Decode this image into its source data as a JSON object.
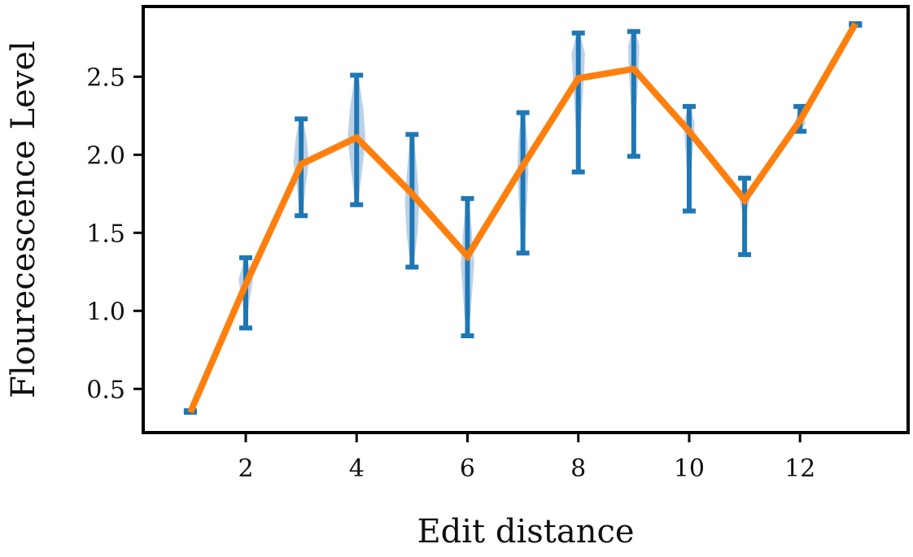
{
  "chart_data": {
    "type": "line",
    "xlabel": "Edit distance",
    "ylabel": "Flourecescence Level",
    "xlim": [
      0.15,
      13.95
    ],
    "ylim": [
      0.22,
      2.95
    ],
    "xticks": [
      2,
      4,
      6,
      8,
      10,
      12
    ],
    "yticks": [
      0.5,
      1.0,
      1.5,
      2.0,
      2.5
    ],
    "ytick_labels": [
      "0.5",
      "1.0",
      "1.5",
      "2.0",
      "2.5"
    ],
    "grid": false,
    "colors": {
      "mean_line": "#ff7f0e",
      "error_bar": "#1f77b4",
      "violin": "#b7cfe5"
    },
    "series": [
      {
        "x": [
          1,
          2,
          3,
          4,
          5,
          6,
          7,
          8,
          9,
          10,
          11,
          12,
          13
        ],
        "y": [
          0.35,
          1.17,
          1.94,
          2.11,
          1.75,
          1.35,
          1.93,
          2.49,
          2.55,
          2.15,
          1.71,
          2.22,
          2.84
        ]
      }
    ],
    "ranges": [
      {
        "x": 1,
        "min": 0.35,
        "max": 0.36
      },
      {
        "x": 2,
        "min": 0.89,
        "max": 1.34
      },
      {
        "x": 3,
        "min": 1.61,
        "max": 2.23
      },
      {
        "x": 4,
        "min": 1.68,
        "max": 2.51
      },
      {
        "x": 5,
        "min": 1.28,
        "max": 2.13
      },
      {
        "x": 6,
        "min": 0.84,
        "max": 1.72
      },
      {
        "x": 7,
        "min": 1.37,
        "max": 2.27
      },
      {
        "x": 8,
        "min": 1.89,
        "max": 2.78
      },
      {
        "x": 9,
        "min": 1.99,
        "max": 2.79
      },
      {
        "x": 10,
        "min": 1.64,
        "max": 2.31
      },
      {
        "x": 11,
        "min": 1.36,
        "max": 1.85
      },
      {
        "x": 12,
        "min": 2.15,
        "max": 2.31
      },
      {
        "x": 13,
        "min": 2.83,
        "max": 2.84
      }
    ],
    "violins": [
      {
        "x": 2,
        "widths": [
          [
            0.9,
            0.02
          ],
          [
            1.05,
            0.06
          ],
          [
            1.2,
            0.13
          ],
          [
            1.3,
            0.05
          ]
        ]
      },
      {
        "x": 3,
        "widths": [
          [
            1.62,
            0.03
          ],
          [
            1.8,
            0.08
          ],
          [
            1.95,
            0.14
          ],
          [
            2.1,
            0.1
          ],
          [
            2.22,
            0.04
          ]
        ]
      },
      {
        "x": 4,
        "widths": [
          [
            1.7,
            0.03
          ],
          [
            1.9,
            0.1
          ],
          [
            2.1,
            0.16
          ],
          [
            2.3,
            0.12
          ],
          [
            2.49,
            0.04
          ]
        ]
      },
      {
        "x": 5,
        "widths": [
          [
            1.3,
            0.03
          ],
          [
            1.5,
            0.1
          ],
          [
            1.7,
            0.13
          ],
          [
            1.9,
            0.09
          ],
          [
            2.1,
            0.04
          ]
        ]
      },
      {
        "x": 6,
        "widths": [
          [
            0.85,
            0.02
          ],
          [
            1.0,
            0.06
          ],
          [
            1.3,
            0.12
          ],
          [
            1.5,
            0.08
          ],
          [
            1.7,
            0.03
          ]
        ]
      },
      {
        "x": 7,
        "widths": [
          [
            1.4,
            0.03
          ],
          [
            1.6,
            0.06
          ],
          [
            1.9,
            0.1
          ],
          [
            2.1,
            0.08
          ],
          [
            2.25,
            0.03
          ]
        ]
      },
      {
        "x": 8,
        "widths": [
          [
            1.92,
            0.02
          ],
          [
            2.2,
            0.05
          ],
          [
            2.5,
            0.1
          ],
          [
            2.65,
            0.12
          ],
          [
            2.76,
            0.04
          ]
        ]
      },
      {
        "x": 9,
        "widths": [
          [
            2.02,
            0.02
          ],
          [
            2.3,
            0.05
          ],
          [
            2.55,
            0.09
          ],
          [
            2.7,
            0.1
          ],
          [
            2.78,
            0.04
          ]
        ]
      },
      {
        "x": 10,
        "widths": [
          [
            1.66,
            0.02
          ],
          [
            1.9,
            0.04
          ],
          [
            2.1,
            0.08
          ],
          [
            2.2,
            0.1
          ],
          [
            2.3,
            0.03
          ]
        ]
      },
      {
        "x": 11,
        "widths": [
          [
            1.38,
            0.01
          ],
          [
            1.6,
            0.02
          ],
          [
            1.72,
            0.1
          ],
          [
            1.8,
            0.03
          ]
        ]
      },
      {
        "x": 12,
        "widths": [
          [
            2.16,
            0.02
          ],
          [
            2.2,
            0.1
          ],
          [
            2.25,
            0.06
          ],
          [
            2.3,
            0.03
          ]
        ]
      }
    ]
  }
}
